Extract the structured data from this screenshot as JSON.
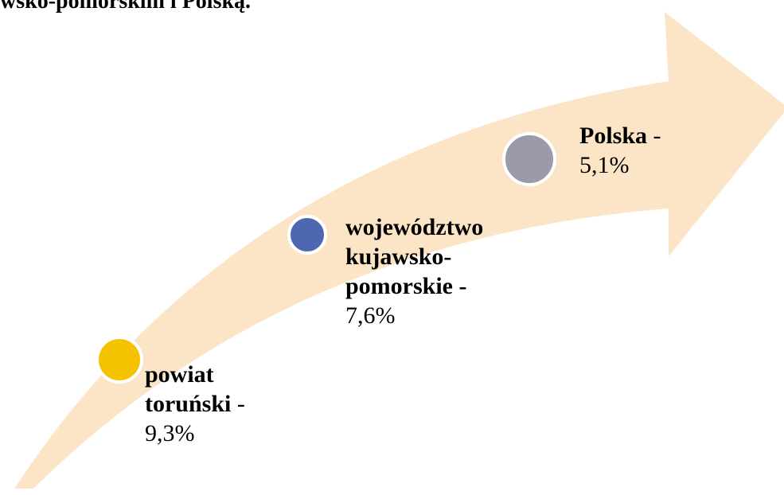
{
  "caption": "wsko-pomorskim i Polską.",
  "items": [
    {
      "name": "powiat toruński",
      "separator": "-",
      "value": "9,3%"
    },
    {
      "name": "województwo kujawsko-pomorskie",
      "separator": "-",
      "value": "7,6%"
    },
    {
      "name": "Polska",
      "separator": "-",
      "value": "5,1%"
    }
  ]
}
